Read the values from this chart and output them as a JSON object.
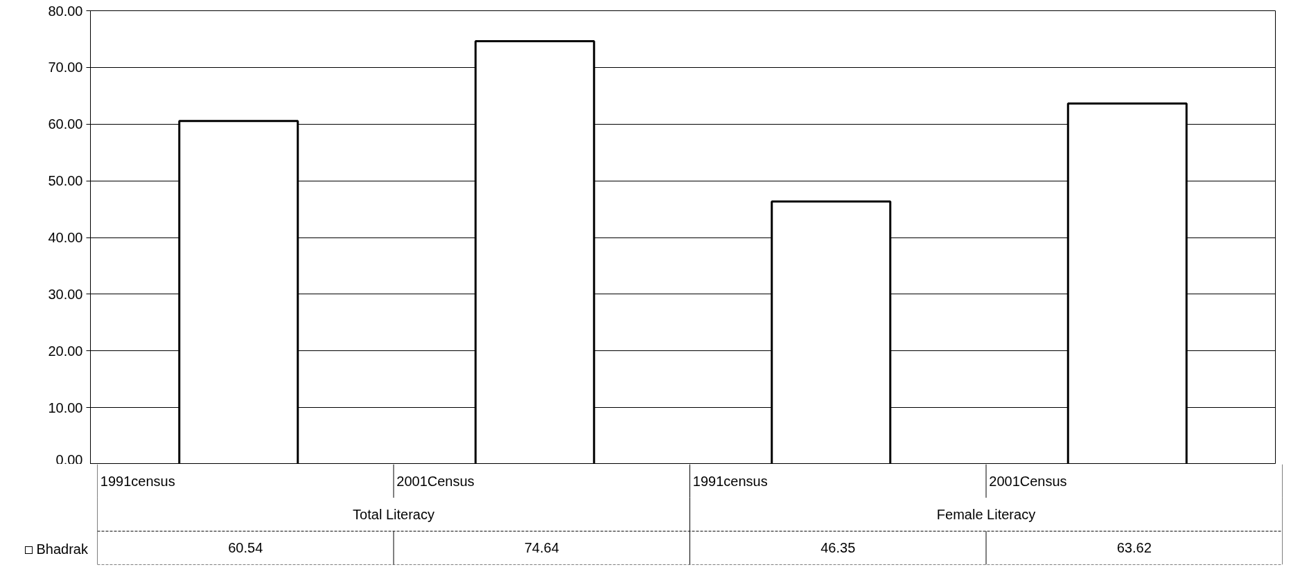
{
  "chart_data": {
    "type": "bar",
    "categories": [
      "1991census",
      "2001Census",
      "1991census",
      "2001Census"
    ],
    "annotations": [
      "Total Literacy",
      "Female Literacy"
    ],
    "series": [
      {
        "name": "Bhadrak",
        "color": "#ffffff",
        "values": [
          60.54,
          74.64,
          46.35,
          63.62
        ]
      }
    ],
    "ylim": [
      0,
      80
    ],
    "yticks": [
      {
        "value": 0,
        "label": "0.00"
      },
      {
        "value": 10,
        "label": "10.00"
      },
      {
        "value": 20,
        "label": "20.00"
      },
      {
        "value": 30,
        "label": "30.00"
      },
      {
        "value": 40,
        "label": "40.00"
      },
      {
        "value": 50,
        "label": "50.00"
      },
      {
        "value": 60,
        "label": "60.00"
      },
      {
        "value": 70,
        "label": "70.00"
      },
      {
        "value": 80,
        "label": "80.00"
      }
    ],
    "grid": "y",
    "legend": "bottom",
    "data_labels": true
  }
}
